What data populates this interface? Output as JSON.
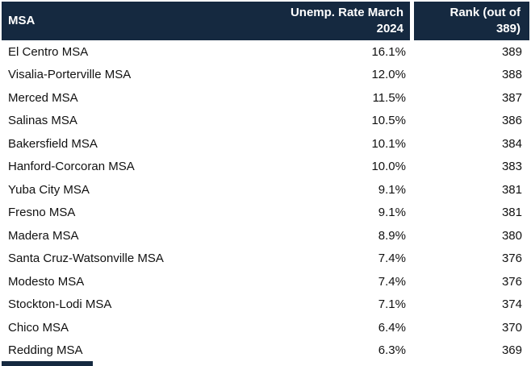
{
  "chart_data": {
    "type": "table",
    "title": "",
    "columns": [
      "MSA",
      "Unemp. Rate March 2024",
      "Rank (out of 389)"
    ],
    "rows": [
      [
        "El Centro MSA",
        "16.1%",
        "389"
      ],
      [
        "Visalia-Porterville MSA",
        "12.0%",
        "388"
      ],
      [
        "Merced MSA",
        "11.5%",
        "387"
      ],
      [
        "Salinas MSA",
        "10.5%",
        "386"
      ],
      [
        "Bakersfield MSA",
        "10.1%",
        "384"
      ],
      [
        "Hanford-Corcoran MSA",
        "10.0%",
        "383"
      ],
      [
        "Yuba City MSA",
        "9.1%",
        "381"
      ],
      [
        "Fresno MSA",
        "9.1%",
        "381"
      ],
      [
        "Madera MSA",
        "8.9%",
        "380"
      ],
      [
        "Santa Cruz-Watsonville MSA",
        "7.4%",
        "376"
      ],
      [
        "Modesto MSA",
        "7.4%",
        "376"
      ],
      [
        "Stockton-Lodi MSA",
        "7.1%",
        "374"
      ],
      [
        "Chico MSA",
        "6.4%",
        "370"
      ],
      [
        "Redding MSA",
        "6.3%",
        "369"
      ]
    ],
    "layout": {
      "column_align": [
        "left",
        "right",
        "right"
      ],
      "grid": false,
      "legend": false
    },
    "colors": {
      "header_bg": "#152940",
      "header_text": "#FFFFFF",
      "row_text": "#111111",
      "background": "#FFFFFF"
    }
  }
}
